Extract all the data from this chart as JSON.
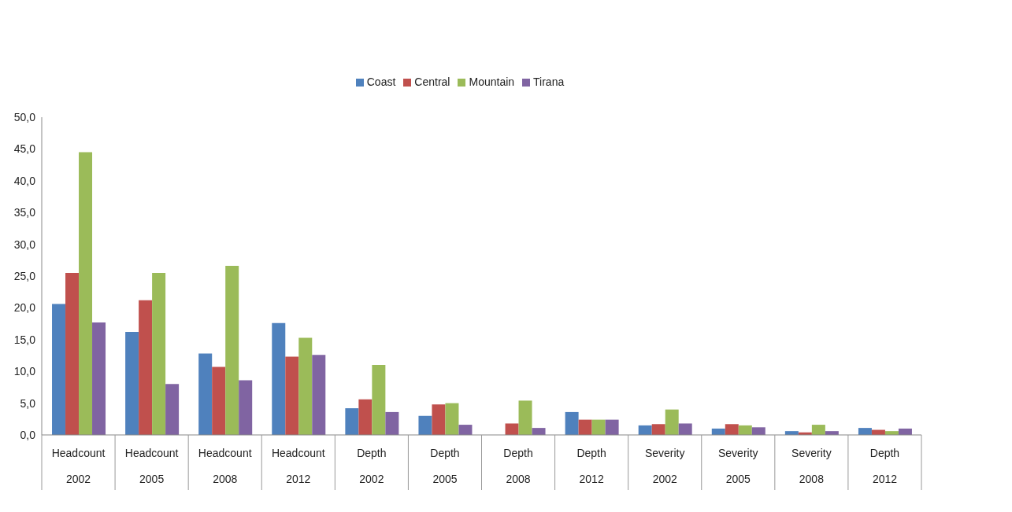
{
  "chart_data": {
    "type": "bar",
    "categories": [
      "Headcount\n2002",
      "Headcount\n2005",
      "Headcount\n2008",
      "Headcount\n2012",
      "Depth\n2002",
      "Depth\n2005",
      "Depth\n2008",
      "Depth\n2012",
      "Severity\n2002",
      "Severity\n2005",
      "Severity\n2008",
      "Depth\n2012"
    ],
    "series": [
      {
        "name": "Coast",
        "color": "#4f81bd",
        "values": [
          20.6,
          16.2,
          12.8,
          17.6,
          4.2,
          3.0,
          null,
          3.6,
          1.5,
          1.0,
          0.6,
          1.1
        ]
      },
      {
        "name": "Central",
        "color": "#c0504d",
        "values": [
          25.5,
          21.2,
          10.7,
          12.3,
          5.6,
          4.8,
          1.8,
          2.4,
          1.7,
          1.7,
          0.4,
          0.8
        ]
      },
      {
        "name": "Mountain",
        "color": "#9bbb59",
        "values": [
          44.5,
          25.5,
          26.6,
          15.3,
          11.0,
          5.0,
          5.4,
          2.4,
          4.0,
          1.5,
          1.6,
          0.6
        ]
      },
      {
        "name": "Tirana",
        "color": "#8064a2",
        "values": [
          17.7,
          8.0,
          8.6,
          12.6,
          3.6,
          1.6,
          1.1,
          2.4,
          1.8,
          1.2,
          0.6,
          1.0
        ]
      }
    ],
    "ylim": [
      0,
      50
    ],
    "yticks": [
      {
        "value": 0,
        "label": "0,0"
      },
      {
        "value": 5,
        "label": "5,0"
      },
      {
        "value": 10,
        "label": "10,0"
      },
      {
        "value": 15,
        "label": "15,0"
      },
      {
        "value": 20,
        "label": "20,0"
      },
      {
        "value": 25,
        "label": "25,0"
      },
      {
        "value": 30,
        "label": "30,0"
      },
      {
        "value": 35,
        "label": "35,0"
      },
      {
        "value": 40,
        "label": "40,0"
      },
      {
        "value": 45,
        "label": "45,0"
      },
      {
        "value": 50,
        "label": "50,0"
      }
    ],
    "grid": false,
    "legend": "top"
  }
}
